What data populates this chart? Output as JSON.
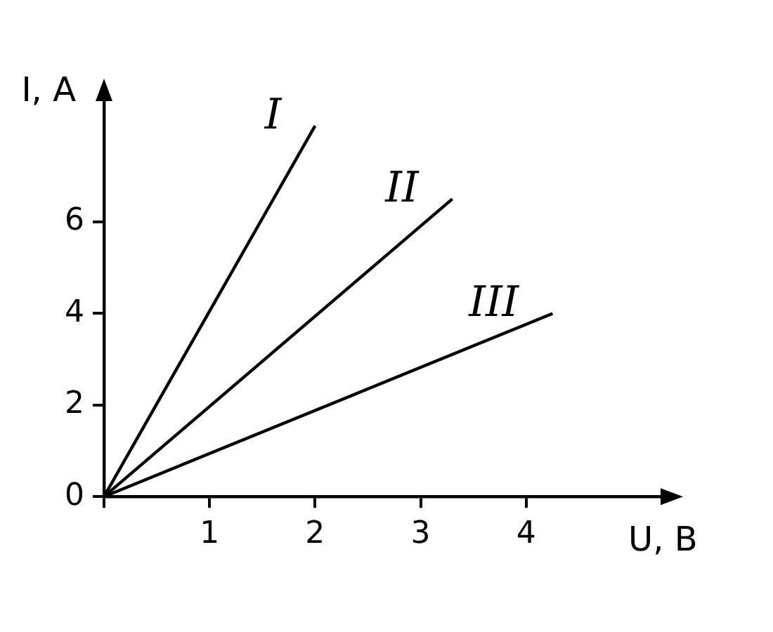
{
  "chart_data": {
    "type": "line",
    "xlabel": "U, B",
    "ylabel": "I, A",
    "series": [
      {
        "name": "I",
        "color": "#000000",
        "x": [
          0,
          2
        ],
        "values": [
          0,
          8.1
        ]
      },
      {
        "name": "II",
        "color": "#000000",
        "x": [
          0,
          3.3
        ],
        "values": [
          0,
          6.5
        ]
      },
      {
        "name": "III",
        "color": "#000000",
        "x": [
          0,
          4.25
        ],
        "values": [
          0,
          4
        ]
      }
    ],
    "xlim": [
      0,
      5.3
    ],
    "ylim": [
      0,
      8.7
    ],
    "xticks": [
      {
        "value": 0,
        "label": null
      },
      1,
      2,
      3,
      4
    ],
    "yticks": [
      0,
      2,
      4,
      6
    ],
    "grid": false,
    "legend": false,
    "marker": "none",
    "line_style": "solid"
  }
}
